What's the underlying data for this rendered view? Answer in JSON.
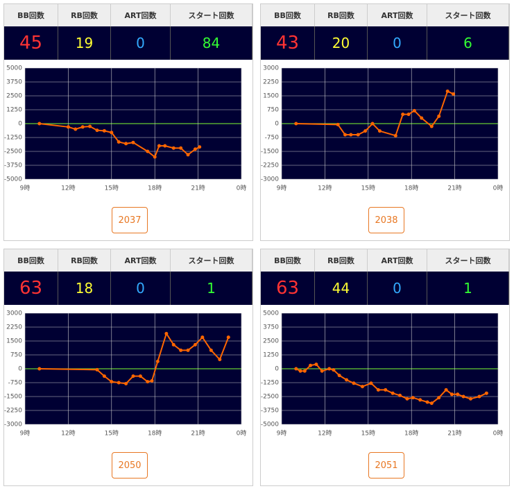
{
  "panels": [
    {
      "headers": [
        "BB回数",
        "RB回数",
        "ART回数",
        "スタート回数"
      ],
      "values": [
        45,
        19,
        0,
        84
      ],
      "chart": {
        "type": "line",
        "color": "#ff6600",
        "xlim": [
          9,
          24
        ],
        "ylim": [
          -5000,
          5000
        ],
        "xticks": [
          {
            "value": 9,
            "label": "9時"
          },
          {
            "value": 12,
            "label": "12時"
          },
          {
            "value": 15,
            "label": "15時"
          },
          {
            "value": 18,
            "label": "18時"
          },
          {
            "value": 21,
            "label": "21時"
          },
          {
            "value": 24,
            "label": "0時"
          }
        ],
        "yticks": [
          -5000,
          -3750,
          -2500,
          -1250,
          0,
          1250,
          2500,
          3750,
          5000
        ],
        "x": [
          10,
          12,
          12.5,
          13,
          13.5,
          14,
          14.5,
          15,
          15.5,
          16,
          16.5,
          17.5,
          18,
          18.3,
          18.7,
          19.3,
          19.8,
          20.3,
          20.8,
          21.1
        ],
        "values": [
          0,
          -300,
          -500,
          -300,
          -250,
          -600,
          -650,
          -800,
          -1650,
          -1800,
          -1700,
          -2500,
          -3000,
          -2000,
          -2000,
          -2200,
          -2200,
          -2800,
          -2300,
          -2100
        ]
      },
      "button": "2037"
    },
    {
      "headers": [
        "BB回数",
        "RB回数",
        "ART回数",
        "スタート回数"
      ],
      "values": [
        43,
        20,
        0,
        6
      ],
      "chart": {
        "type": "line",
        "color": "#ff6600",
        "xlim": [
          9,
          24
        ],
        "ylim": [
          -3000,
          3000
        ],
        "xticks": [
          {
            "value": 9,
            "label": "9時"
          },
          {
            "value": 12,
            "label": "12時"
          },
          {
            "value": 15,
            "label": "15時"
          },
          {
            "value": 18,
            "label": "18時"
          },
          {
            "value": 21,
            "label": "21時"
          },
          {
            "value": 24,
            "label": "0時"
          }
        ],
        "yticks": [
          -3000,
          -2250,
          -1500,
          -750,
          0,
          750,
          1500,
          2250,
          3000
        ],
        "x": [
          10,
          12.9,
          13.4,
          13.8,
          14.3,
          14.8,
          15.3,
          15.8,
          16.9,
          17.4,
          17.8,
          18.2,
          18.7,
          19.4,
          19.9,
          20.5,
          20.9
        ],
        "values": [
          0,
          -50,
          -600,
          -600,
          -600,
          -400,
          0,
          -400,
          -650,
          500,
          500,
          700,
          300,
          -150,
          400,
          1750,
          1600
        ]
      },
      "button": "2038"
    },
    {
      "headers": [
        "BB回数",
        "RB回数",
        "ART回数",
        "スタート回数"
      ],
      "values": [
        63,
        18,
        0,
        1
      ],
      "chart": {
        "type": "line",
        "color": "#ff6600",
        "xlim": [
          9,
          24
        ],
        "ylim": [
          -3000,
          3000
        ],
        "xticks": [
          {
            "value": 9,
            "label": "9時"
          },
          {
            "value": 12,
            "label": "12時"
          },
          {
            "value": 15,
            "label": "15時"
          },
          {
            "value": 18,
            "label": "18時"
          },
          {
            "value": 21,
            "label": "21時"
          },
          {
            "value": 24,
            "label": "0時"
          }
        ],
        "yticks": [
          -3000,
          -2250,
          -1500,
          -750,
          0,
          750,
          1500,
          2250,
          3000
        ],
        "x": [
          10,
          14,
          14.5,
          15,
          15.5,
          16,
          16.5,
          17,
          17.5,
          17.8,
          18.2,
          18.8,
          19.3,
          19.8,
          20.3,
          20.8,
          21.3,
          21.9,
          22.5,
          23.1
        ],
        "values": [
          0,
          -50,
          -400,
          -700,
          -750,
          -800,
          -400,
          -400,
          -700,
          -650,
          400,
          1900,
          1300,
          1000,
          1000,
          1300,
          1700,
          1000,
          500,
          1700
        ]
      },
      "button": "2050"
    },
    {
      "headers": [
        "BB回数",
        "RB回数",
        "ART回数",
        "スタート回数"
      ],
      "values": [
        63,
        44,
        0,
        1
      ],
      "chart": {
        "type": "line",
        "color": "#ff6600",
        "xlim": [
          9,
          24
        ],
        "ylim": [
          -5000,
          5000
        ],
        "xticks": [
          {
            "value": 9,
            "label": "9時"
          },
          {
            "value": 12,
            "label": "12時"
          },
          {
            "value": 15,
            "label": "15時"
          },
          {
            "value": 18,
            "label": "18時"
          },
          {
            "value": 21,
            "label": "21時"
          },
          {
            "value": 24,
            "label": "0時"
          }
        ],
        "yticks": [
          -5000,
          -3750,
          -2500,
          -1250,
          0,
          1250,
          2500,
          3750,
          5000
        ],
        "x": [
          10,
          10.3,
          10.6,
          11,
          11.4,
          11.8,
          12.3,
          12.6,
          13,
          13.5,
          14,
          14.6,
          15.2,
          15.7,
          16.2,
          16.7,
          17.2,
          17.7,
          18.1,
          18.6,
          19.1,
          19.4,
          19.9,
          20.4,
          20.8,
          21.2,
          21.6,
          22.1,
          22.7,
          23.2
        ],
        "values": [
          0,
          -200,
          -200,
          300,
          400,
          -200,
          0,
          -100,
          -600,
          -1000,
          -1300,
          -1600,
          -1300,
          -1900,
          -1900,
          -2200,
          -2400,
          -2700,
          -2600,
          -2800,
          -3000,
          -3100,
          -2600,
          -1900,
          -2300,
          -2300,
          -2500,
          -2700,
          -2500,
          -2200
        ]
      },
      "button": "2051"
    }
  ]
}
